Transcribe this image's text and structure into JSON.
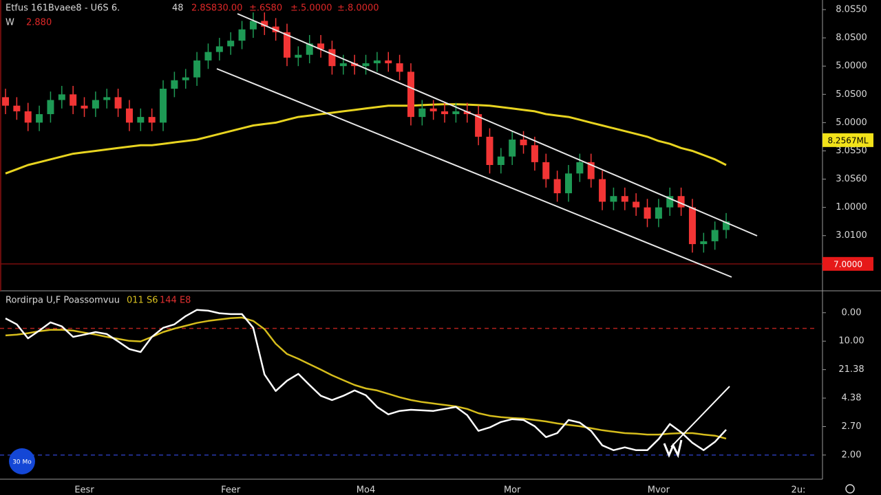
{
  "header": {
    "symbol": "Etfus 161Bvaee8 - U6S 6.",
    "interval": "48",
    "quotes": [
      "2.8S830.00",
      "±.6S80",
      "±.5.0000",
      "±.8.0000"
    ],
    "line2_label": "W",
    "line2_value": "2.880",
    "badge": "30 Mo"
  },
  "chart_data": [
    {
      "type": "candlestick",
      "open": [
        5.9,
        5.6,
        5.4,
        5.0,
        5.3,
        5.8,
        6.0,
        5.6,
        5.5,
        5.8,
        5.9,
        5.5,
        5.0,
        5.2,
        5.0,
        6.2,
        6.5,
        6.6,
        7.2,
        7.5,
        7.7,
        7.9,
        8.3,
        8.6,
        8.4,
        8.2,
        7.3,
        7.4,
        7.8,
        7.6,
        7.0,
        7.1,
        7.0,
        7.1,
        7.2,
        7.1,
        6.8,
        5.2,
        5.5,
        5.4,
        5.3,
        5.4,
        5.3,
        4.5,
        3.5,
        3.8,
        4.4,
        4.2,
        3.6,
        3.0,
        2.5,
        3.2,
        3.6,
        3.0,
        2.2,
        2.4,
        2.2,
        2.0,
        1.6,
        2.0,
        2.4,
        2.0,
        0.7,
        0.8,
        1.2
      ],
      "high": [
        6.2,
        5.9,
        5.7,
        5.6,
        6.1,
        6.3,
        6.3,
        5.9,
        6.1,
        6.2,
        6.2,
        5.8,
        5.5,
        5.5,
        6.5,
        6.8,
        6.9,
        7.5,
        7.8,
        8.0,
        8.2,
        8.6,
        8.9,
        8.9,
        8.7,
        8.5,
        7.7,
        8.1,
        8.1,
        7.9,
        7.4,
        7.4,
        7.4,
        7.5,
        7.5,
        7.4,
        7.1,
        5.8,
        5.8,
        5.7,
        5.7,
        5.7,
        5.6,
        4.8,
        4.1,
        4.7,
        4.7,
        4.5,
        3.9,
        3.3,
        3.5,
        3.9,
        3.9,
        3.3,
        2.7,
        2.7,
        2.5,
        2.3,
        2.3,
        2.7,
        2.7,
        2.3,
        1.1,
        1.5,
        1.8
      ],
      "low": [
        5.3,
        5.1,
        4.7,
        4.7,
        5.0,
        5.5,
        5.3,
        5.2,
        5.2,
        5.5,
        5.2,
        4.7,
        4.7,
        4.7,
        4.7,
        5.9,
        6.2,
        6.3,
        6.9,
        7.2,
        7.4,
        7.6,
        8.0,
        8.1,
        7.9,
        7.0,
        7.0,
        7.1,
        7.3,
        6.7,
        6.7,
        6.7,
        6.7,
        6.8,
        6.8,
        6.5,
        4.9,
        4.9,
        5.1,
        5.0,
        5.0,
        5.0,
        4.2,
        3.2,
        3.2,
        3.5,
        3.9,
        3.3,
        2.7,
        2.2,
        2.2,
        2.9,
        2.7,
        1.9,
        1.9,
        1.9,
        1.7,
        1.3,
        1.3,
        1.7,
        1.7,
        0.4,
        0.4,
        0.5,
        0.9
      ],
      "close": [
        5.6,
        5.4,
        5.0,
        5.3,
        5.8,
        6.0,
        5.6,
        5.5,
        5.8,
        5.9,
        5.5,
        5.0,
        5.2,
        5.0,
        6.2,
        6.5,
        6.6,
        7.2,
        7.5,
        7.7,
        7.9,
        8.3,
        8.6,
        8.4,
        8.2,
        7.3,
        7.4,
        7.8,
        7.6,
        7.0,
        7.1,
        7.0,
        7.1,
        7.2,
        7.1,
        6.8,
        5.2,
        5.5,
        5.4,
        5.3,
        5.4,
        5.3,
        4.5,
        3.5,
        3.8,
        4.4,
        4.2,
        3.6,
        3.0,
        2.5,
        3.2,
        3.6,
        3.0,
        2.2,
        2.4,
        2.2,
        2.0,
        1.6,
        2.0,
        2.4,
        2.0,
        0.7,
        0.8,
        1.2,
        1.5
      ],
      "up_color": "#1e9a55",
      "down_color": "#f23535",
      "overlays": [
        {
          "color": "#e8d420",
          "values": [
            3.2,
            3.35,
            3.5,
            3.6,
            3.7,
            3.8,
            3.9,
            3.95,
            4.0,
            4.05,
            4.1,
            4.15,
            4.2,
            4.2,
            4.25,
            4.3,
            4.35,
            4.4,
            4.5,
            4.6,
            4.7,
            4.8,
            4.9,
            4.95,
            5.0,
            5.1,
            5.2,
            5.25,
            5.3,
            5.35,
            5.4,
            5.45,
            5.5,
            5.55,
            5.6,
            5.6,
            5.6,
            5.62,
            5.64,
            5.65,
            5.65,
            5.64,
            5.62,
            5.6,
            5.55,
            5.5,
            5.45,
            5.4,
            5.3,
            5.25,
            5.2,
            5.1,
            5.0,
            4.9,
            4.8,
            4.7,
            4.6,
            4.5,
            4.35,
            4.25,
            4.1,
            4.0,
            3.85,
            3.7,
            3.5
          ]
        }
      ],
      "ylim": [
        -0.88,
        9.34
      ],
      "yticks": [
        {
          "value": 9,
          "label": "8.0S50"
        },
        {
          "value": 8,
          "label": "8.0S00"
        },
        {
          "value": 7,
          "label": "5.0000"
        },
        {
          "value": 6,
          "label": "5.0S00"
        },
        {
          "value": 5,
          "label": "5.0000"
        },
        {
          "value": 4,
          "label": "3.0S50"
        },
        {
          "value": 3,
          "label": "3.0S60"
        },
        {
          "value": 2,
          "label": "1.0000"
        },
        {
          "value": 1,
          "label": "3.0100"
        }
      ],
      "price_badges": [
        {
          "value": 4.38,
          "label": "8.2567ML",
          "color": "#f2e21a"
        },
        {
          "value": 0,
          "label": "7.0000",
          "color": "#e61919"
        }
      ]
    },
    {
      "type": "line",
      "title": "Rordirpa U,F Poassomvuu",
      "title_values": [
        {
          "text": "011 S6",
          "color": "#d8c020"
        },
        {
          "text": "144 E8",
          "color": "#e03030"
        }
      ],
      "categories": [
        null,
        null,
        null,
        null,
        null,
        null,
        null,
        "Eesr",
        null,
        null,
        null,
        null,
        null,
        null,
        null,
        null,
        null,
        null,
        null,
        null,
        "Feer",
        null,
        null,
        null,
        null,
        null,
        null,
        null,
        null,
        null,
        null,
        null,
        "Mo4",
        null,
        null,
        null,
        null,
        null,
        null,
        null,
        null,
        null,
        null,
        null,
        null,
        "Mor",
        null,
        null,
        null,
        null,
        null,
        null,
        null,
        null,
        null,
        null,
        null,
        null,
        "Mvor",
        null,
        null,
        null,
        null,
        null,
        null
      ],
      "time_axis_end": "2u:",
      "series": [
        {
          "color": "#ffffff",
          "values": [
            4.8,
            4.59,
            4.1,
            4.37,
            4.66,
            4.52,
            4.15,
            4.23,
            4.32,
            4.25,
            3.99,
            3.72,
            3.62,
            4.15,
            4.47,
            4.59,
            4.88,
            5.1,
            5.07,
            4.98,
            4.95,
            4.95,
            4.47,
            2.83,
            2.25,
            2.61,
            2.85,
            2.46,
            2.08,
            1.93,
            2.08,
            2.27,
            2.1,
            1.69,
            1.43,
            1.55,
            1.59,
            1.57,
            1.55,
            1.62,
            1.69,
            1.4,
            0.85,
            0.97,
            1.16,
            1.26,
            1.23,
            1.01,
            0.63,
            0.77,
            1.23,
            1.14,
            0.85,
            0.34,
            0.17,
            0.27,
            0.17,
            0.17,
            0.56,
            1.09,
            0.8,
            0.43,
            0.17,
            0.46,
            0.89
          ]
        },
        {
          "color": "#d6bd1c",
          "values": [
            4.2,
            4.23,
            4.28,
            4.35,
            4.4,
            4.4,
            4.37,
            4.3,
            4.23,
            4.15,
            4.08,
            4.01,
            3.99,
            4.15,
            4.32,
            4.44,
            4.54,
            4.64,
            4.71,
            4.76,
            4.81,
            4.83,
            4.71,
            4.42,
            3.91,
            3.55,
            3.38,
            3.19,
            3.0,
            2.8,
            2.63,
            2.46,
            2.34,
            2.27,
            2.15,
            2.03,
            1.93,
            1.86,
            1.81,
            1.76,
            1.71,
            1.62,
            1.47,
            1.38,
            1.33,
            1.3,
            1.28,
            1.23,
            1.18,
            1.11,
            1.06,
            1.01,
            0.94,
            0.87,
            0.82,
            0.77,
            0.75,
            0.72,
            0.72,
            0.75,
            0.77,
            0.77,
            0.72,
            0.68,
            0.58
          ]
        }
      ],
      "ylim": [
        -0.8,
        5.72
      ],
      "yticks": [
        {
          "value": 5,
          "label": "0.00"
        },
        {
          "value": 4,
          "label": "10.00"
        },
        {
          "value": 3,
          "label": "21.38"
        },
        {
          "value": 2,
          "label": "4.38"
        },
        {
          "value": 1,
          "label": "2.70"
        },
        {
          "value": 0,
          "label": "2.00"
        }
      ],
      "levels": [
        {
          "value": 4.45,
          "color": "#b3221e"
        },
        {
          "value": 0,
          "color": "#2a3ab0"
        }
      ]
    }
  ]
}
